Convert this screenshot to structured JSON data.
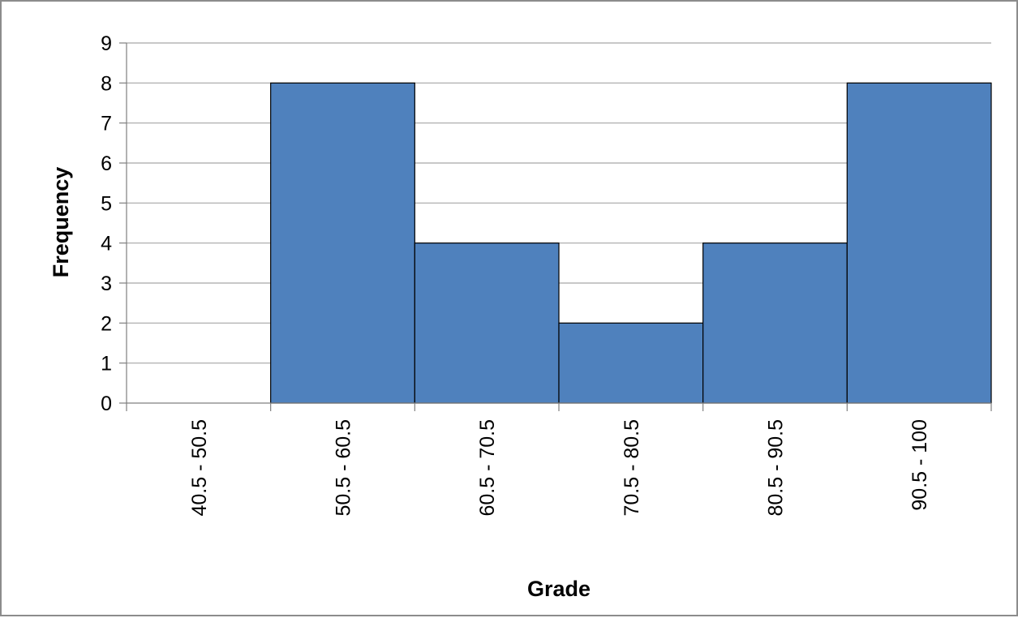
{
  "chart_data": {
    "type": "bar",
    "title": "",
    "xlabel": "Grade",
    "ylabel": "Frequency",
    "categories": [
      "40.5 - 50.5",
      "50.5 - 60.5",
      "60.5 - 70.5",
      "70.5 - 80.5",
      "80.5 - 90.5",
      "90.5 - 100"
    ],
    "values": [
      0,
      8,
      4,
      2,
      4,
      8
    ],
    "ylim": [
      0,
      9
    ],
    "yticks": [
      0,
      1,
      2,
      3,
      4,
      5,
      6,
      7,
      8,
      9
    ],
    "grid": true,
    "legend": "none",
    "bar_color": "#4f81bd",
    "bar_edge_color": "#000000"
  }
}
